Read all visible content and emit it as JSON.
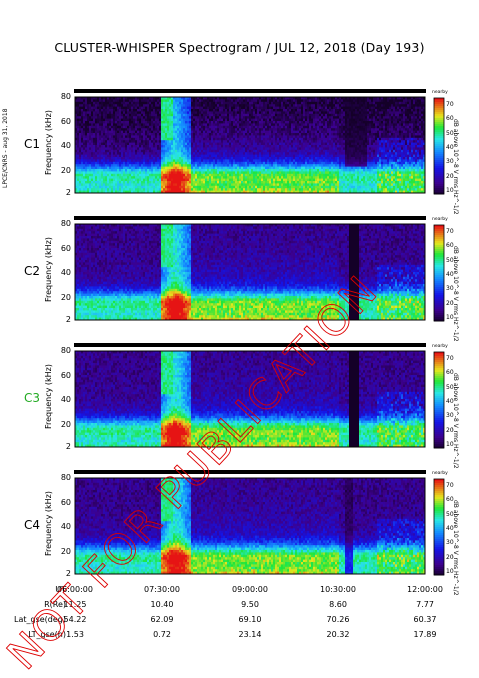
{
  "title": "CLUSTER-WHISPER Spectrogram / JUL 12, 2018 (Day 193)",
  "side_note": "LPCE/CNRS - aug 31, 2018",
  "stamp": "NOT FOR PUBLICATION",
  "chart_data": {
    "type": "heatmap",
    "panels": [
      {
        "label": "C1",
        "color": "#000000"
      },
      {
        "label": "C2",
        "color": "#000000"
      },
      {
        "label": "C3",
        "color": "#22aa22"
      },
      {
        "label": "C4",
        "color": "#000000"
      }
    ],
    "ylabel": "Frequency (kHz)",
    "yticks": [
      "80",
      "60",
      "40",
      "20",
      "2"
    ],
    "ylim": [
      2,
      80
    ],
    "colorbar": {
      "label": "dB above 10^-8 V_rms Hz^-1/2",
      "ticks": [
        "70",
        "60",
        "50",
        "40",
        "30",
        "20",
        "10"
      ],
      "range": [
        10,
        70
      ],
      "header": "nearby"
    },
    "xticks": [
      "06:00:00",
      "07:30:00",
      "09:00:00",
      "10:30:00",
      "12:00:00"
    ],
    "ephemeris": [
      {
        "label": "UT",
        "values": [
          "06:00:00",
          "07:30:00",
          "09:00:00",
          "10:30:00",
          "12:00:00"
        ]
      },
      {
        "label": "R(Re)",
        "values": [
          "11.25",
          "10.40",
          "9.50",
          "8.60",
          "7.77"
        ]
      },
      {
        "label": "Lat_gse(deg)",
        "values": [
          "54.22",
          "62.09",
          "69.10",
          "70.26",
          "60.37"
        ]
      },
      {
        "label": "LT_gse(h)",
        "values": [
          "1.53",
          "0.72",
          "23.14",
          "20.32",
          "17.89"
        ]
      }
    ]
  },
  "colors": {
    "stamp": "#dd0000",
    "background": "#ffffff"
  }
}
